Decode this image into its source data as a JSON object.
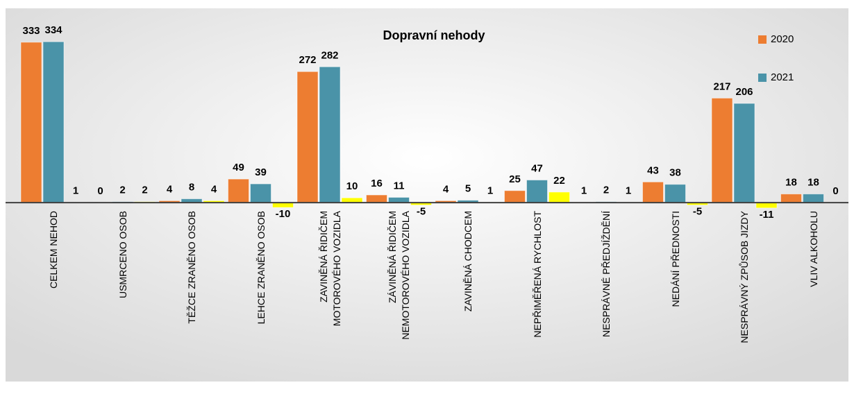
{
  "chart_data": {
    "type": "bar",
    "title": "Dopravní nehody",
    "categories": [
      "CELKEM NEHOD",
      "USMRCENO OSOB",
      "TĚŽCE ZRANĚNO OSOB",
      "LEHCE ZRANĚNO OSOB",
      "ZAVINĚNÁ ŘIDIČEM\nMOTOROVÉHO VOZIDLA",
      "ZÁVINĚNÁ ŘIDIČEM\nNEMOTOROVÉHO VOZIDLA",
      "ZAVINĚNÁ CHODCEM",
      "NEPŘIMĚŘENÁ RYCHLOST",
      "NESPRÁVNÉ PŘEDJÍŽDĚNÍ",
      "NEDÁNÍ PŘEDNOSTI",
      "NESPRÁVNÝ ZPŮSOB JIZDY",
      "VLIV ALKOHOLU"
    ],
    "series": [
      {
        "name": "2020",
        "color": "#ed7d31",
        "values": [
          333,
          0,
          4,
          49,
          272,
          16,
          4,
          25,
          1,
          43,
          217,
          18
        ]
      },
      {
        "name": "2021",
        "color": "#4a93a8",
        "values": [
          334,
          2,
          8,
          39,
          282,
          11,
          5,
          47,
          2,
          38,
          206,
          18
        ]
      },
      {
        "color": "#ffff00",
        "values": [
          1,
          2,
          4,
          -10,
          10,
          -5,
          1,
          22,
          1,
          -5,
          -11,
          0
        ]
      }
    ],
    "ylim": [
      -30,
      340
    ],
    "legend": "right"
  }
}
